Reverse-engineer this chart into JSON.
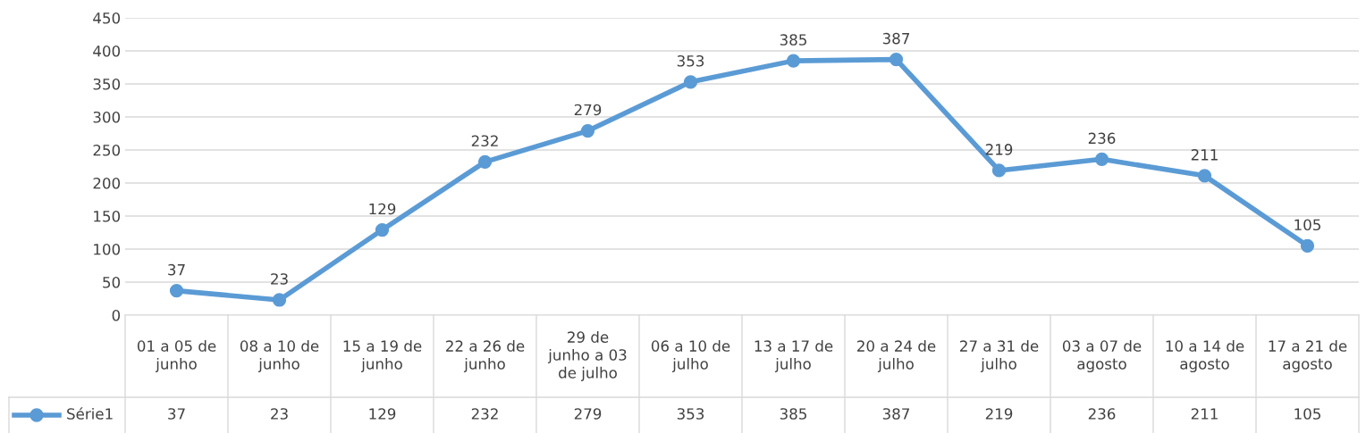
{
  "chart_data": {
    "type": "line",
    "categories": [
      "01 a 05 de junho",
      "08 a 10 de junho",
      "15 a 19 de junho",
      "22 a 26 de junho",
      "29 de junho a 03 de julho",
      "06 a 10 de julho",
      "13 a 17 de julho",
      "20 a 24 de julho",
      "27 a 31 de julho",
      "03 a 07 de agosto",
      "10 a 14 de agosto",
      "17 a 21 de agosto"
    ],
    "series": [
      {
        "name": "Série1",
        "color": "#5b9bd5",
        "values": [
          37,
          23,
          129,
          232,
          279,
          353,
          385,
          387,
          219,
          236,
          211,
          105
        ],
        "value_labels": [
          "37",
          "23",
          "129",
          "232",
          "279",
          "353",
          "385",
          "387",
          "219",
          "236",
          "211",
          "105"
        ]
      }
    ],
    "ylim": [
      0,
      450
    ],
    "yticks": [
      0,
      50,
      100,
      150,
      200,
      250,
      300,
      350,
      400,
      450
    ],
    "annotations": [
      "37",
      "23",
      "129",
      "232",
      "279",
      "353",
      "385",
      "387",
      "219",
      "236",
      "211",
      "105"
    ],
    "grid": "y",
    "marker": "circle",
    "line_style": "solid"
  }
}
